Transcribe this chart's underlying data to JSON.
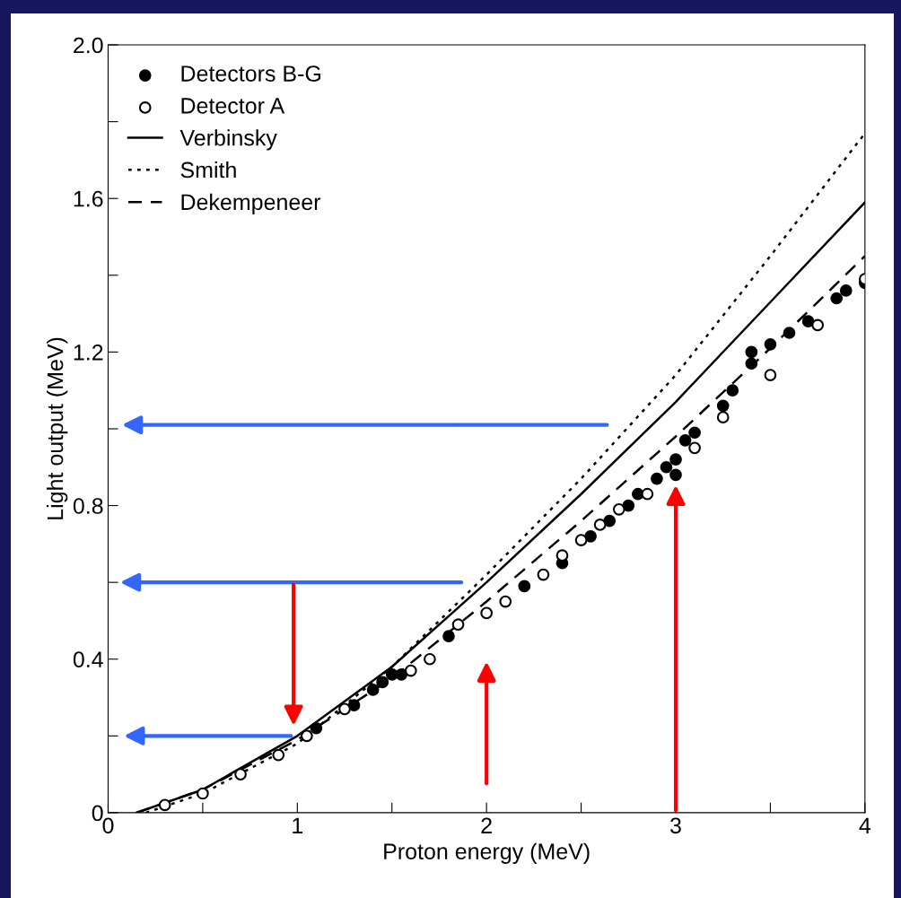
{
  "chart_data": {
    "type": "scatter",
    "xlabel": "Proton energy (MeV)",
    "ylabel": "Light output (MeV)",
    "xlim": [
      0,
      4
    ],
    "ylim": [
      0,
      2
    ],
    "xticks": [
      0,
      {
        "value": 0.5,
        "label": null
      },
      1,
      {
        "value": 1.5,
        "label": null
      },
      2,
      {
        "value": 2.5,
        "label": null
      },
      3,
      {
        "value": 3.5,
        "label": null
      },
      4
    ],
    "yticks": [
      0,
      {
        "value": 0.2,
        "label": null
      },
      {
        "value": 0.4,
        "label": "0.4"
      },
      {
        "value": 0.6,
        "label": null
      },
      {
        "value": 0.8,
        "label": "0.8"
      },
      {
        "value": 1.0,
        "label": null
      },
      {
        "value": 1.2,
        "label": "1.2"
      },
      {
        "value": 1.4,
        "label": null
      },
      {
        "value": 1.6,
        "label": "1.6"
      },
      {
        "value": 1.8,
        "label": null
      },
      {
        "value": 2.0,
        "label": "2.0"
      }
    ],
    "grid": false,
    "legend": "top left",
    "series": [
      {
        "name": "Detectors B-G",
        "marker": "circle",
        "color": "#000000",
        "x": [
          1.1,
          1.3,
          1.4,
          1.45,
          1.5,
          1.55,
          1.8,
          2.2,
          2.4,
          2.55,
          2.65,
          2.75,
          2.8,
          2.9,
          2.95,
          3.0,
          3.0,
          3.05,
          3.1,
          3.25,
          3.3,
          3.4,
          3.4,
          3.5,
          3.6,
          3.7,
          3.85,
          3.9,
          4.0
        ],
        "values": [
          0.22,
          0.28,
          0.32,
          0.34,
          0.36,
          0.36,
          0.46,
          0.59,
          0.65,
          0.72,
          0.76,
          0.8,
          0.83,
          0.87,
          0.9,
          0.92,
          0.88,
          0.97,
          0.99,
          1.06,
          1.1,
          1.2,
          1.17,
          1.22,
          1.25,
          1.28,
          1.34,
          1.36,
          1.38
        ]
      },
      {
        "name": "Detector A",
        "marker": "circle",
        "color": "#000000",
        "x": [
          0.3,
          0.5,
          0.7,
          0.9,
          1.05,
          1.25,
          1.6,
          1.7,
          1.85,
          2.0,
          2.1,
          2.3,
          2.4,
          2.5,
          2.6,
          2.7,
          2.85,
          3.1,
          3.25,
          3.5,
          3.75,
          4.0
        ],
        "values": [
          0.02,
          0.05,
          0.1,
          0.15,
          0.2,
          0.27,
          0.37,
          0.4,
          0.49,
          0.52,
          0.55,
          0.62,
          0.67,
          0.71,
          0.75,
          0.79,
          0.83,
          0.95,
          1.03,
          1.14,
          1.27,
          1.39
        ]
      },
      {
        "name": "Verbinsky",
        "type": "line",
        "line_style": "solid",
        "marker": "none",
        "color": "#000000",
        "x": [
          0.15,
          0.5,
          1,
          1.5,
          2,
          2.5,
          3,
          3.5,
          4
        ],
        "values": [
          0,
          0.06,
          0.2,
          0.38,
          0.6,
          0.83,
          1.07,
          1.33,
          1.59
        ]
      },
      {
        "name": "Smith",
        "type": "line",
        "line_style": "dotted",
        "marker": "none",
        "color": "#000000",
        "x": [
          0.2,
          0.5,
          1,
          1.5,
          2,
          2.5,
          3,
          3.5,
          4
        ],
        "values": [
          0,
          0.05,
          0.18,
          0.38,
          0.62,
          0.87,
          1.14,
          1.45,
          1.77
        ]
      },
      {
        "name": "Dekempeneer",
        "type": "line",
        "line_style": "dashed",
        "marker": "none",
        "color": "#000000",
        "x": [
          0.15,
          0.5,
          1,
          1.5,
          2,
          2.5,
          3,
          3.5,
          4
        ],
        "values": [
          0,
          0.06,
          0.19,
          0.35,
          0.55,
          0.76,
          0.98,
          1.21,
          1.45
        ]
      }
    ]
  }
}
